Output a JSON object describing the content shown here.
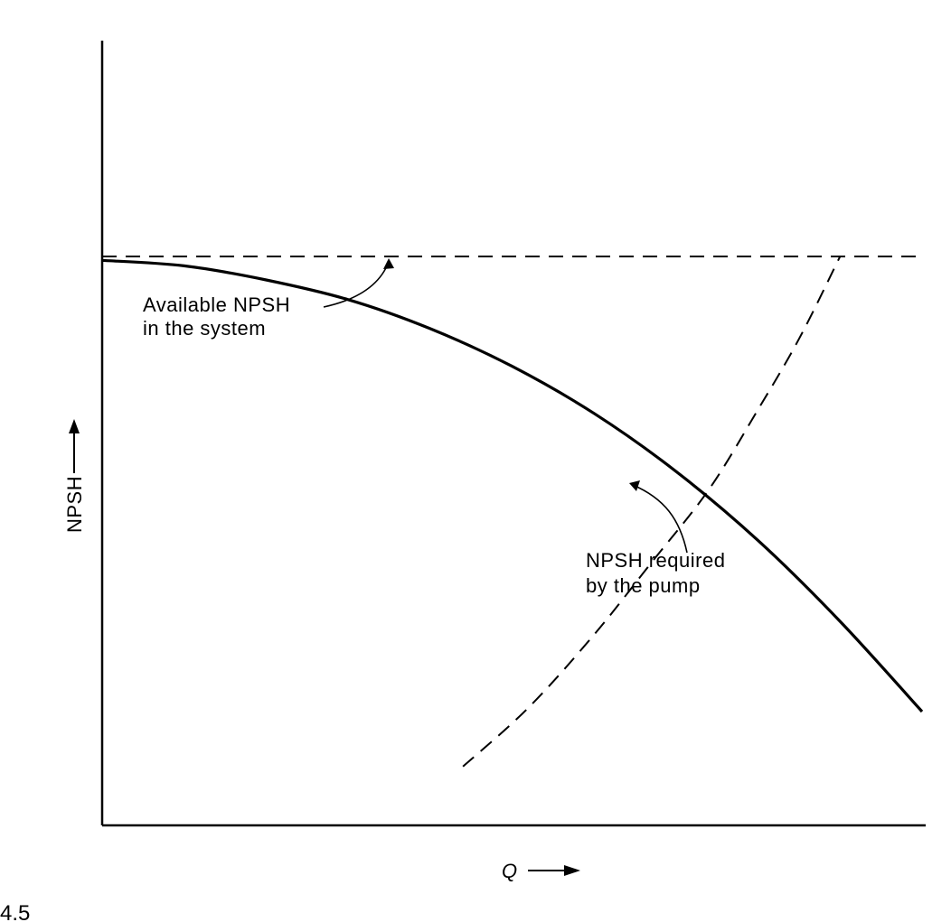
{
  "chart_data": {
    "type": "line",
    "xlabel": "Q",
    "ylabel": "NPSH",
    "ylim": [
      0,
      100
    ],
    "xlim": [
      0,
      100
    ],
    "grid": false,
    "series": [
      {
        "name": "Available NPSH in the system",
        "style": "solid",
        "x": [
          0,
          10,
          20,
          30,
          40,
          50,
          60,
          70,
          80,
          90,
          100
        ],
        "y": [
          72,
          71.3,
          69.5,
          67,
          63.3,
          58.5,
          52.5,
          45.1,
          36.3,
          26,
          14.5
        ]
      },
      {
        "name": "NPSH required by the pump",
        "style": "dashed",
        "x": [
          44,
          52,
          60,
          67,
          74,
          80,
          85,
          90
        ],
        "y": [
          7.5,
          15,
          24.3,
          33.5,
          42.8,
          53,
          62,
          72.5
        ]
      },
      {
        "name": "",
        "style": "dashed",
        "x": [
          0,
          100
        ],
        "y": [
          72.5,
          72.5
        ]
      }
    ],
    "annotations": [
      {
        "line1": "Available NPSH",
        "line2": "in the system"
      },
      {
        "line1": "NPSH required",
        "line2": "by the pump"
      }
    ],
    "caption": "4.5"
  }
}
